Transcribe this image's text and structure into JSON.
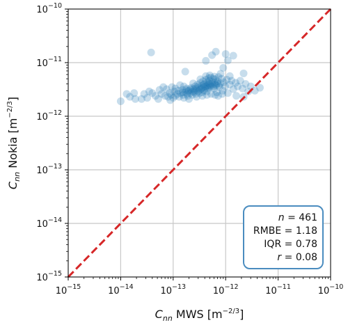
{
  "chart_data": {
    "type": "scatter",
    "title": "",
    "xlabel": {
      "symbol": "C",
      "subscript": "nn",
      "text": " MWS [m",
      "exp": "−2/3",
      "close": "]"
    },
    "ylabel": {
      "symbol": "C",
      "subscript": "nn",
      "text": " Nokia [m",
      "exp": "−2/3",
      "close": "]"
    },
    "xscale": "log",
    "yscale": "log",
    "xlim": [
      1e-15,
      1e-10
    ],
    "ylim": [
      1e-15,
      1e-10
    ],
    "grid": true,
    "x_ticks": [
      {
        "value": 1e-15,
        "base": "10",
        "exp": "−15"
      },
      {
        "value": 1e-14,
        "base": "10",
        "exp": "−14"
      },
      {
        "value": 1e-13,
        "base": "10",
        "exp": "−13"
      },
      {
        "value": 1e-12,
        "base": "10",
        "exp": "−12"
      },
      {
        "value": 1e-11,
        "base": "10",
        "exp": "−11"
      },
      {
        "value": 1e-10,
        "base": "10",
        "exp": "−10"
      }
    ],
    "y_ticks": [
      {
        "value": 1e-15,
        "base": "10",
        "exp": "−15"
      },
      {
        "value": 1e-14,
        "base": "10",
        "exp": "−14"
      },
      {
        "value": 1e-13,
        "base": "10",
        "exp": "−13"
      },
      {
        "value": 1e-12,
        "base": "10",
        "exp": "−12"
      },
      {
        "value": 1e-11,
        "base": "10",
        "exp": "−11"
      },
      {
        "value": 1e-10,
        "base": "10",
        "exp": "−10"
      }
    ],
    "reference_line": {
      "style": "dashed",
      "color": "#d62728",
      "x": [
        1e-15,
        1e-10
      ],
      "y": [
        1e-15,
        1e-10
      ]
    },
    "series": [
      {
        "color": "#1f77b4",
        "points": [
          [
            3.8e-14,
            1.55e-11
          ],
          [
            6.5e-13,
            1.6e-11
          ],
          [
            1e-12,
            1.45e-11
          ],
          [
            5.5e-13,
            1.38e-11
          ],
          [
            1.4e-12,
            1.35e-11
          ],
          [
            1.1e-12,
            1.1e-11
          ],
          [
            4.2e-13,
            1.08e-11
          ],
          [
            9e-13,
            8e-12
          ],
          [
            1.7e-13,
            6.8e-12
          ],
          [
            8e-13,
            6.2e-12
          ],
          [
            2.2e-12,
            6.3e-12
          ],
          [
            1.2e-12,
            5.6e-12
          ],
          [
            1e-14,
            1.9e-12
          ],
          [
            1.5e-14,
            2.3e-12
          ],
          [
            1.9e-14,
            2.1e-12
          ],
          [
            2.5e-14,
            2.1e-12
          ],
          [
            2.8e-14,
            2.6e-12
          ],
          [
            3.2e-14,
            2.2e-12
          ],
          [
            4e-14,
            2.7e-12
          ],
          [
            4.6e-14,
            2.4e-12
          ],
          [
            5.2e-14,
            2.1e-12
          ],
          [
            6e-14,
            2.6e-12
          ],
          [
            6.5e-14,
            3.5e-12
          ],
          [
            7e-14,
            2.4e-12
          ],
          [
            8e-14,
            2.3e-12
          ],
          [
            8.5e-14,
            2.7e-12
          ],
          [
            9.2e-14,
            2.5e-12
          ],
          [
            1e-13,
            2.2e-12
          ],
          [
            1.05e-13,
            2.9e-12
          ],
          [
            1.1e-13,
            2.4e-12
          ],
          [
            1.2e-13,
            2.6e-12
          ],
          [
            1.25e-13,
            3e-12
          ],
          [
            1.3e-13,
            2.3e-12
          ],
          [
            1.4e-13,
            2.7e-12
          ],
          [
            1.5e-13,
            3.1e-12
          ],
          [
            1.55e-13,
            2.5e-12
          ],
          [
            1.6e-13,
            2.2e-12
          ],
          [
            1.7e-13,
            2.8e-12
          ],
          [
            1.8e-13,
            3.3e-12
          ],
          [
            1.85e-13,
            2.6e-12
          ],
          [
            1.9e-13,
            2.4e-12
          ],
          [
            2e-13,
            3e-12
          ],
          [
            2.1e-13,
            2.7e-12
          ],
          [
            2.2e-13,
            3.4e-12
          ],
          [
            2.3e-13,
            2.5e-12
          ],
          [
            2.4e-13,
            3.2e-12
          ],
          [
            2.5e-13,
            2.8e-12
          ],
          [
            2.6e-13,
            3.6e-12
          ],
          [
            2.7e-13,
            2.6e-12
          ],
          [
            2.8e-13,
            3.1e-12
          ],
          [
            2.9e-13,
            3.9e-12
          ],
          [
            3e-13,
            2.9e-12
          ],
          [
            3.1e-13,
            3.4e-12
          ],
          [
            3.2e-13,
            2.7e-12
          ],
          [
            3.3e-13,
            4.2e-12
          ],
          [
            3.4e-13,
            3.2e-12
          ],
          [
            3.5e-13,
            3.7e-12
          ],
          [
            3.6e-13,
            2.8e-12
          ],
          [
            3.7e-13,
            4.5e-12
          ],
          [
            3.8e-13,
            3.5e-12
          ],
          [
            3.9e-13,
            3e-12
          ],
          [
            4e-13,
            4e-12
          ],
          [
            4.1e-13,
            3.3e-12
          ],
          [
            4.2e-13,
            4.8e-12
          ],
          [
            4.3e-13,
            3.6e-12
          ],
          [
            4.4e-13,
            2.9e-12
          ],
          [
            4.5e-13,
            4.3e-12
          ],
          [
            4.6e-13,
            3.8e-12
          ],
          [
            4.7e-13,
            5.1e-12
          ],
          [
            4.8e-13,
            3.4e-12
          ],
          [
            4.9e-13,
            4.6e-12
          ],
          [
            5e-13,
            3.9e-12
          ],
          [
            5.2e-13,
            5.3e-12
          ],
          [
            5.4e-13,
            3.6e-12
          ],
          [
            5.6e-13,
            4.4e-12
          ],
          [
            5.8e-13,
            5e-12
          ],
          [
            6e-13,
            3.3e-12
          ],
          [
            6.2e-13,
            4.2e-12
          ],
          [
            6.4e-13,
            4.9e-12
          ],
          [
            6.6e-13,
            3.8e-12
          ],
          [
            6.8e-13,
            2.8e-12
          ],
          [
            7e-13,
            4.5e-12
          ],
          [
            7.3e-13,
            5.4e-12
          ],
          [
            7.6e-13,
            3.5e-12
          ],
          [
            8e-13,
            4.1e-12
          ],
          [
            8.4e-13,
            5e-12
          ],
          [
            8.8e-13,
            3e-12
          ],
          [
            9.2e-13,
            4.3e-12
          ],
          [
            9.8e-13,
            3.6e-12
          ],
          [
            1.05e-12,
            4.8e-12
          ],
          [
            1.1e-12,
            2.7e-12
          ],
          [
            1.2e-12,
            3.9e-12
          ],
          [
            1.3e-12,
            4.6e-12
          ],
          [
            1.4e-12,
            3.2e-12
          ],
          [
            1.55e-12,
            4.2e-12
          ],
          [
            1.7e-12,
            3.6e-12
          ],
          [
            1.9e-12,
            4.6e-12
          ],
          [
            2.1e-12,
            3.3e-12
          ],
          [
            2.4e-12,
            4e-12
          ],
          [
            2.7e-12,
            2.9e-12
          ],
          [
            3e-12,
            3.6e-12
          ],
          [
            3.6e-12,
            3e-12
          ],
          [
            4.5e-12,
            3.4e-12
          ],
          [
            1.6e-12,
            2.4e-12
          ],
          [
            1.1e-13,
            3.3e-12
          ],
          [
            1.6e-13,
            3.6e-12
          ],
          [
            2.4e-13,
            4.1e-12
          ],
          [
            3.3e-13,
            4.9e-12
          ],
          [
            4.2e-13,
            5.6e-12
          ],
          [
            5e-13,
            5.8e-12
          ],
          [
            6.1e-13,
            5.5e-12
          ],
          [
            1.8e-14,
            2.7e-12
          ],
          [
            5.5e-14,
            3.1e-12
          ],
          [
            7.5e-14,
            3.2e-12
          ],
          [
            9.5e-14,
            3.5e-12
          ],
          [
            1.35e-13,
            3.8e-12
          ],
          [
            2e-13,
            2.1e-12
          ],
          [
            2.8e-13,
            2.3e-12
          ],
          [
            3.6e-13,
            2.4e-12
          ],
          [
            4.4e-13,
            2.5e-12
          ],
          [
            5.3e-13,
            2.6e-12
          ],
          [
            6.3e-13,
            2.5e-12
          ],
          [
            7.2e-13,
            2.4e-12
          ],
          [
            8.6e-13,
            2.6e-12
          ],
          [
            2.5e-13,
            3e-12
          ],
          [
            2.7e-13,
            3.3e-12
          ],
          [
            3e-13,
            3.6e-12
          ],
          [
            3.2e-13,
            3.1e-12
          ],
          [
            3.5e-13,
            3.3e-12
          ],
          [
            3.8e-13,
            3.9e-12
          ],
          [
            4.1e-13,
            3.6e-12
          ],
          [
            4.5e-13,
            3.4e-12
          ],
          [
            4.8e-13,
            4.1e-12
          ],
          [
            5.1e-13,
            3.7e-12
          ],
          [
            5.5e-13,
            4e-12
          ],
          [
            5.9e-13,
            3.6e-12
          ],
          [
            6.3e-13,
            3.9e-12
          ],
          [
            6.9e-13,
            4.1e-12
          ],
          [
            7.4e-13,
            3.8e-12
          ],
          [
            1.5e-13,
            2.8e-12
          ],
          [
            1.75e-13,
            3.1e-12
          ],
          [
            1.95e-13,
            2.9e-12
          ],
          [
            2.15e-13,
            3.2e-12
          ],
          [
            2.35e-13,
            2.9e-12
          ],
          [
            1.3e-14,
            2.6e-12
          ],
          [
            3.5e-14,
            2.9e-12
          ],
          [
            8.8e-14,
            2e-12
          ],
          [
            2.2e-12,
            2.3e-12
          ]
        ]
      }
    ],
    "stats": [
      {
        "label": "n",
        "italic": true,
        "value": "461"
      },
      {
        "label": "RMBE",
        "italic": false,
        "value": "1.18"
      },
      {
        "label": "IQR",
        "italic": false,
        "value": "0.78"
      },
      {
        "label": "r",
        "italic": true,
        "value": "0.08"
      }
    ],
    "stats_box_color": "#4a8cbf",
    "stats_box_position": "bottom-right"
  }
}
